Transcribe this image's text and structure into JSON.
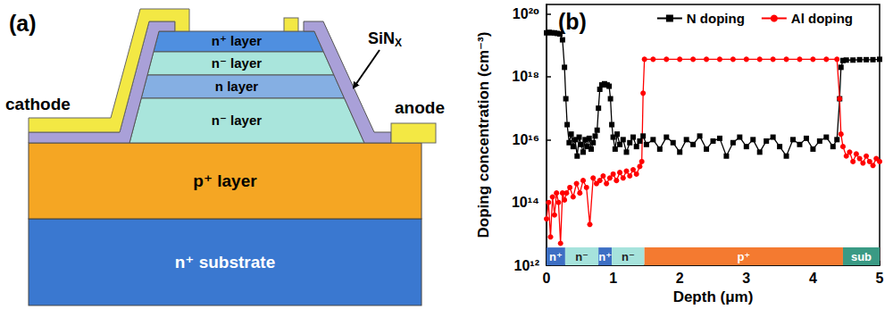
{
  "diagram": {
    "panel_label": "(a)",
    "mesa_layers": [
      "n⁺ layer",
      "n⁻ layer",
      "n layer",
      "n⁻ layer"
    ],
    "p_layer": "p⁺ layer",
    "substrate": "n⁺ substrate",
    "passivation": {
      "base": "SiN",
      "subscript": "X"
    },
    "cathode": "cathode",
    "anode": "anode"
  },
  "chart_data": {
    "type": "line",
    "panel_label": "(b)",
    "x_label": "Depth (μm)",
    "y_label": "Doping concentration (cm⁻³)",
    "log": "y",
    "grid": false,
    "legend": "top",
    "xlim": [
      0,
      5
    ],
    "xticks": [
      0,
      1,
      2,
      3,
      4,
      5
    ],
    "ylim": [
      1000000000000.0,
      2e+20
    ],
    "yticks": [
      {
        "value": 1000000000000.0,
        "label": "10¹²"
      },
      {
        "value": 100000000000000.0,
        "label": "10¹⁴"
      },
      {
        "value": 1e+16,
        "label": "10¹⁶"
      },
      {
        "value": 1e+18,
        "label": "10¹⁸"
      },
      {
        "value": 1e+20,
        "label": "10²⁰"
      }
    ],
    "series": [
      {
        "name": "N doping",
        "color": "#000000",
        "marker": "square",
        "x": [
          0,
          0.04,
          0.08,
          0.12,
          0.16,
          0.2,
          0.24,
          0.27,
          0.29,
          0.31,
          0.34,
          0.37,
          0.4,
          0.43,
          0.46,
          0.49,
          0.52,
          0.55,
          0.58,
          0.61,
          0.64,
          0.67,
          0.7,
          0.73,
          0.76,
          0.78,
          0.8,
          0.83,
          0.87,
          0.91,
          0.94,
          0.96,
          0.98,
          1.0,
          1.03,
          1.06,
          1.1,
          1.15,
          1.2,
          1.25,
          1.3,
          1.35,
          1.4,
          1.45,
          1.5,
          1.6,
          1.7,
          1.8,
          1.9,
          2.0,
          2.1,
          2.2,
          2.3,
          2.4,
          2.5,
          2.6,
          2.7,
          2.8,
          2.9,
          3.0,
          3.1,
          3.2,
          3.3,
          3.4,
          3.5,
          3.6,
          3.7,
          3.8,
          3.9,
          4.0,
          4.1,
          4.2,
          4.3,
          4.36,
          4.4,
          4.42,
          4.45,
          4.5,
          4.6,
          4.7,
          4.8,
          4.9,
          5.0
        ],
        "values": [
          2.5e+19,
          2.6e+19,
          2.5e+19,
          2.5e+19,
          2.4e+19,
          2.3e+19,
          1.5e+19,
          2e+18,
          2e+17,
          3e+16,
          8000000000000000.0,
          1.5e+16,
          6000000000000000.0,
          1e+16,
          3000000000000000.0,
          1.2e+16,
          7000000000000000.0,
          4000000000000000.0,
          1e+16,
          6000000000000000.0,
          1.1e+16,
          5000000000000000.0,
          8000000000000000.0,
          1.3e+16,
          2e+16,
          1e+17,
          4e+17,
          5.5e+17,
          6e+17,
          5.5e+17,
          5e+17,
          2e+17,
          3e+16,
          1.2e+16,
          5000000000000000.0,
          1.5e+16,
          7000000000000000.0,
          1e+16,
          4000000000000000.0,
          8000000000000000.0,
          1.2e+16,
          6000000000000000.0,
          9000000000000000.0,
          1.3e+16,
          7000000000000000.0,
          1e+16,
          5000000000000000.0,
          1.2e+16,
          8000000000000000.0,
          4000000000000000.0,
          1e+16,
          7000000000000000.0,
          1.3e+16,
          5000000000000000.0,
          9000000000000000.0,
          1.1e+16,
          3000000000000000.0,
          8000000000000000.0,
          1.2e+16,
          6000000000000000.0,
          1e+16,
          4000000000000000.0,
          9000000000000000.0,
          1.2e+16,
          6000000000000000.0,
          3000000000000000.0,
          1e+16,
          7000000000000000.0,
          1.1e+16,
          5000000000000000.0,
          9000000000000000.0,
          1.2e+16,
          6000000000000000.0,
          1e+16,
          2e+17,
          2e+18,
          3.3e+18,
          3.4e+18,
          3.4e+18,
          3.5e+18,
          3.5e+18,
          3.5e+18,
          3.6e+18
        ]
      },
      {
        "name": "Al doping",
        "color": "#ff0000",
        "marker": "circle",
        "x": [
          0,
          0.03,
          0.06,
          0.09,
          0.12,
          0.15,
          0.18,
          0.21,
          0.24,
          0.27,
          0.3,
          0.35,
          0.4,
          0.45,
          0.5,
          0.55,
          0.6,
          0.65,
          0.7,
          0.75,
          0.8,
          0.85,
          0.9,
          0.95,
          1.0,
          1.05,
          1.1,
          1.15,
          1.2,
          1.25,
          1.3,
          1.35,
          1.4,
          1.43,
          1.45,
          1.47,
          1.6,
          1.8,
          2.0,
          2.2,
          2.4,
          2.6,
          2.8,
          3.0,
          3.2,
          3.4,
          3.6,
          3.8,
          4.0,
          4.2,
          4.36,
          4.4,
          4.42,
          4.45,
          4.5,
          4.55,
          4.6,
          4.65,
          4.7,
          4.75,
          4.8,
          4.85,
          4.9,
          4.95,
          5.0
        ],
        "values": [
          30000000000000.0,
          100000000000000.0,
          8000000000000.0,
          150000000000000.0,
          40000000000000.0,
          200000000000000.0,
          100000000000000.0,
          5000000000000.0,
          200000000000000.0,
          120000000000000.0,
          200000000000000.0,
          300000000000000.0,
          150000000000000.0,
          400000000000000.0,
          200000000000000.0,
          500000000000000.0,
          300000000000000.0,
          20000000000000.0,
          600000000000000.0,
          400000000000000.0,
          500000000000000.0,
          700000000000000.0,
          400000000000000.0,
          600000000000000.0,
          800000000000000.0,
          500000000000000.0,
          900000000000000.0,
          600000000000000.0,
          1000000000000000.0,
          700000000000000.0,
          1100000000000000.0,
          800000000000000.0,
          1400000000000000.0,
          2000000000000000.0,
          3e+17,
          3.6e+18,
          3.6e+18,
          3.6e+18,
          3.6e+18,
          3.6e+18,
          3.6e+18,
          3.6e+18,
          3.6e+18,
          3.6e+18,
          3.6e+18,
          3.6e+18,
          3.6e+18,
          3.6e+18,
          3.6e+18,
          3.6e+18,
          3.6e+18,
          2e+17,
          1.5e+16,
          6000000000000000.0,
          3000000000000000.0,
          4000000000000000.0,
          2000000000000000.0,
          3500000000000000.0,
          2500000000000000.0,
          1800000000000000.0,
          3000000000000000.0,
          2000000000000000.0,
          1500000000000000.0,
          2500000000000000.0,
          2000000000000000.0
        ]
      }
    ],
    "layers": [
      {
        "label": "n⁺",
        "from": 0,
        "to": 0.28,
        "color": "#3d6fc4"
      },
      {
        "label": "n⁻",
        "from": 0.28,
        "to": 0.78,
        "color": "#a6e3dc"
      },
      {
        "label": "n⁺",
        "from": 0.78,
        "to": 0.98,
        "color": "#3d6fc4"
      },
      {
        "label": "n⁻",
        "from": 0.98,
        "to": 1.47,
        "color": "#a6e3dc"
      },
      {
        "label": "p⁺",
        "from": 1.47,
        "to": 4.45,
        "color": "#f47a30"
      },
      {
        "label": "sub",
        "from": 4.45,
        "to": 5,
        "color": "#3a9a84"
      }
    ]
  }
}
